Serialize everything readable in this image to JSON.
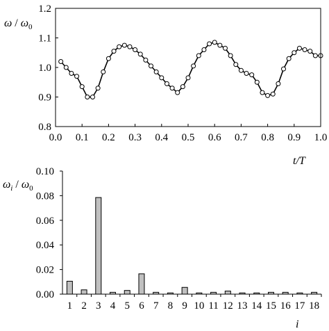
{
  "chart_data": [
    {
      "type": "line",
      "ylabel_main": "ω",
      "ylabel_sep": " / ",
      "ylabel_ref": "ω",
      "ylabel_ref_sub": "0",
      "xlabel": "t/T",
      "xlim": [
        0,
        1
      ],
      "ylim": [
        0.8,
        1.2
      ],
      "xticks": [
        0.0,
        0.1,
        0.2,
        0.3,
        0.4,
        0.5,
        0.6,
        0.7,
        0.8,
        0.9,
        1.0
      ],
      "xtick_labels": [
        "0.0",
        "0.1",
        "0.2",
        "0.3",
        "0.4",
        "0.5",
        "0.6",
        "0.7",
        "0.8",
        "0.9",
        "1.0"
      ],
      "yticks": [
        0.8,
        0.9,
        1.0,
        1.1,
        1.2
      ],
      "ytick_labels": [
        "0.8",
        "0.9",
        "1.0",
        "1.1",
        "1.2"
      ],
      "grid": false,
      "series": [
        {
          "x": [
            0.02,
            0.04,
            0.06,
            0.08,
            0.1,
            0.12,
            0.14,
            0.16,
            0.18,
            0.2,
            0.22,
            0.24,
            0.26,
            0.28,
            0.3,
            0.32,
            0.34,
            0.36,
            0.38,
            0.4,
            0.42,
            0.44,
            0.46,
            0.48,
            0.5,
            0.52,
            0.54,
            0.56,
            0.58,
            0.6,
            0.62,
            0.64,
            0.66,
            0.68,
            0.7,
            0.72,
            0.74,
            0.76,
            0.78,
            0.8,
            0.82,
            0.84,
            0.86,
            0.88,
            0.9,
            0.92,
            0.94,
            0.96,
            0.98,
            1.0
          ],
          "y": [
            1.02,
            1.0,
            0.98,
            0.97,
            0.935,
            0.9,
            0.9,
            0.93,
            0.985,
            1.03,
            1.055,
            1.07,
            1.075,
            1.07,
            1.06,
            1.045,
            1.025,
            1.005,
            0.985,
            0.965,
            0.945,
            0.93,
            0.915,
            0.935,
            0.965,
            1.005,
            1.04,
            1.06,
            1.08,
            1.085,
            1.075,
            1.065,
            1.04,
            1.01,
            0.99,
            0.98,
            0.975,
            0.95,
            0.915,
            0.905,
            0.91,
            0.945,
            0.995,
            1.03,
            1.05,
            1.065,
            1.06,
            1.055,
            1.04,
            1.04
          ],
          "color": "#000000",
          "marker": "open-circle"
        }
      ]
    },
    {
      "type": "bar",
      "ylabel_main": "ω",
      "ylabel_main_sub": "i",
      "ylabel_sep": " / ",
      "ylabel_ref": "ω",
      "ylabel_ref_sub": "0",
      "xlabel": "i",
      "ylim": [
        0,
        0.1
      ],
      "yticks": [
        0.0,
        0.02,
        0.04,
        0.06,
        0.08,
        0.1
      ],
      "ytick_labels": [
        "0.00",
        "0.02",
        "0.04",
        "0.06",
        "0.08",
        "0.10"
      ],
      "grid": false,
      "categories": [
        "1",
        "2",
        "3",
        "4",
        "5",
        "6",
        "7",
        "8",
        "9",
        "10",
        "11",
        "12",
        "13",
        "14",
        "15",
        "16",
        "17",
        "18"
      ],
      "values": [
        0.0105,
        0.0035,
        0.0785,
        0.0015,
        0.003,
        0.0165,
        0.0015,
        0.001,
        0.0055,
        0.001,
        0.0015,
        0.0025,
        0.001,
        0.001,
        0.0015,
        0.0015,
        0.001,
        0.0015
      ],
      "bar_color": "#c0c0c0",
      "edge_color": "#000000"
    }
  ]
}
